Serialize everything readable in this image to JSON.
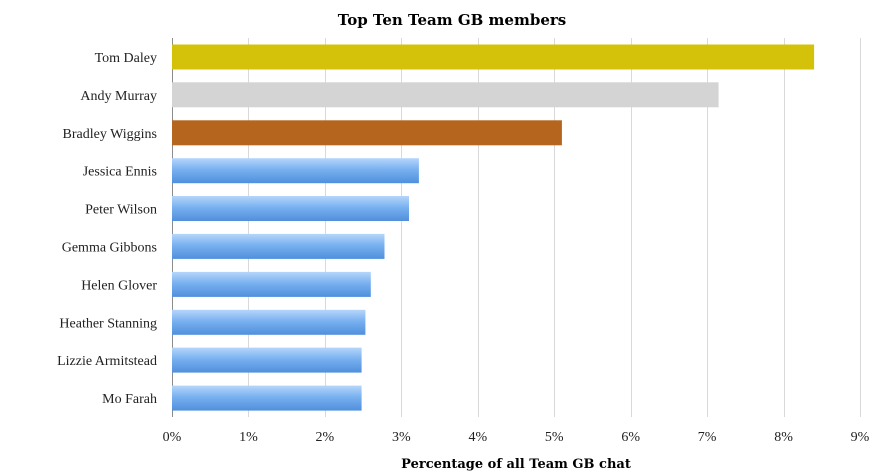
{
  "chart_data": {
    "type": "bar",
    "orientation": "horizontal",
    "title": "Top Ten Team GB members",
    "xlabel": "Percentage of all Team GB chat",
    "ylabel": "",
    "xlim": [
      0,
      9
    ],
    "x_ticks": [
      "0%",
      "1%",
      "2%",
      "3%",
      "4%",
      "5%",
      "6%",
      "7%",
      "8%",
      "9%"
    ],
    "grid": true,
    "categories": [
      "Tom Daley",
      "Andy Murray",
      "Bradley Wiggins",
      "Jessica Ennis",
      "Peter Wilson",
      "Gemma Gibbons",
      "Helen Glover",
      "Heather Stanning",
      "Lizzie Armitstead",
      "Mo Farah"
    ],
    "values": [
      8.4,
      7.15,
      5.1,
      3.23,
      3.1,
      2.78,
      2.6,
      2.53,
      2.48,
      2.48
    ],
    "bar_colors": [
      "#d4c10a",
      "#d4d4d4",
      "#b5651d",
      "#5d9be0",
      "#5d9be0",
      "#5d9be0",
      "#5d9be0",
      "#5d9be0",
      "#5d9be0",
      "#5d9be0"
    ]
  }
}
